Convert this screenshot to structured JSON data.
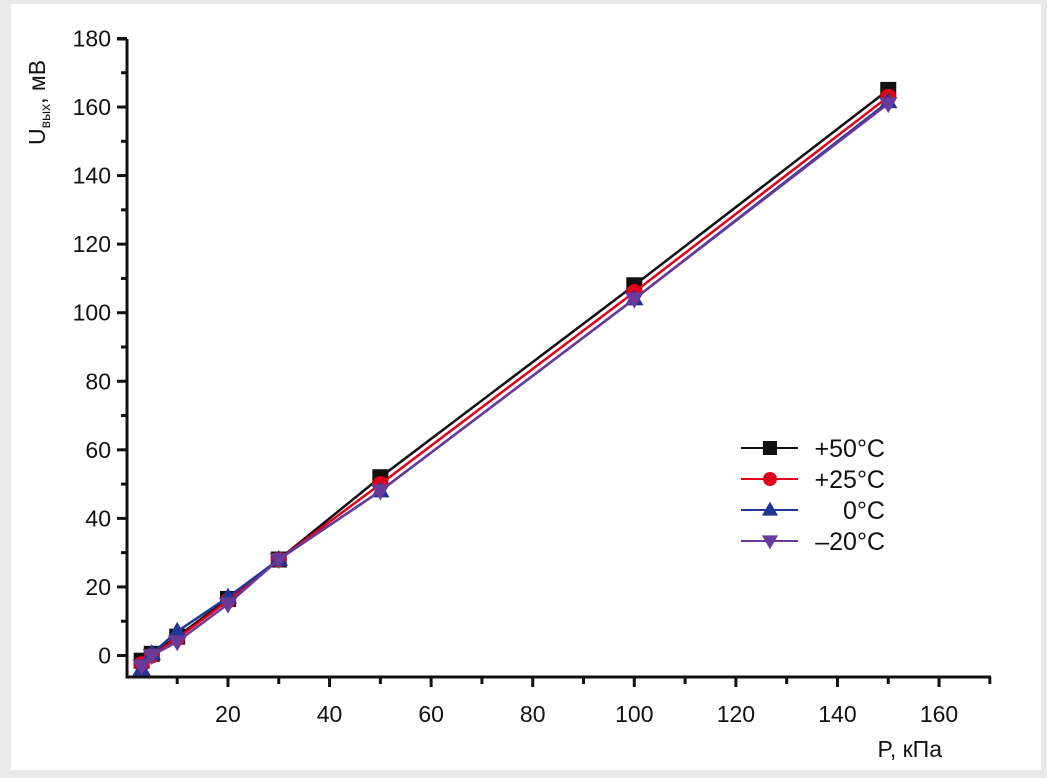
{
  "chart_data": {
    "type": "line",
    "title": "",
    "xlabel": "P, кПа",
    "ylabel_main": "U",
    "ylabel_sub": "вых",
    "ylabel_unit": ", мВ",
    "xlim": [
      0,
      170
    ],
    "ylim": [
      -6,
      180
    ],
    "xticks": [
      20,
      40,
      60,
      80,
      100,
      120,
      140,
      160
    ],
    "yticks": [
      0,
      20,
      40,
      60,
      80,
      100,
      120,
      140,
      160,
      180
    ],
    "grid": false,
    "legend_position": "right-middle",
    "x": [
      3,
      5,
      10,
      20,
      30,
      50,
      100,
      150
    ],
    "series": [
      {
        "name": "+50°C",
        "color": "#111111",
        "marker": "square",
        "values": [
          -1.5,
          0.5,
          5.5,
          16.5,
          28,
          52,
          108,
          165
        ]
      },
      {
        "name": "+25°C",
        "color": "#e3001b",
        "marker": "circle",
        "values": [
          -2.5,
          0,
          5,
          16,
          28,
          50,
          106,
          163
        ]
      },
      {
        "name": "0°C",
        "color": "#1f3694",
        "marker": "triangle-up",
        "values": [
          -4,
          0.5,
          7,
          17,
          28,
          48,
          104,
          161.5
        ]
      },
      {
        "name": "–20°C",
        "color": "#6a3a9a",
        "marker": "triangle-down",
        "values": [
          -3,
          0,
          4,
          15,
          28,
          48,
          104,
          161
        ]
      }
    ]
  }
}
